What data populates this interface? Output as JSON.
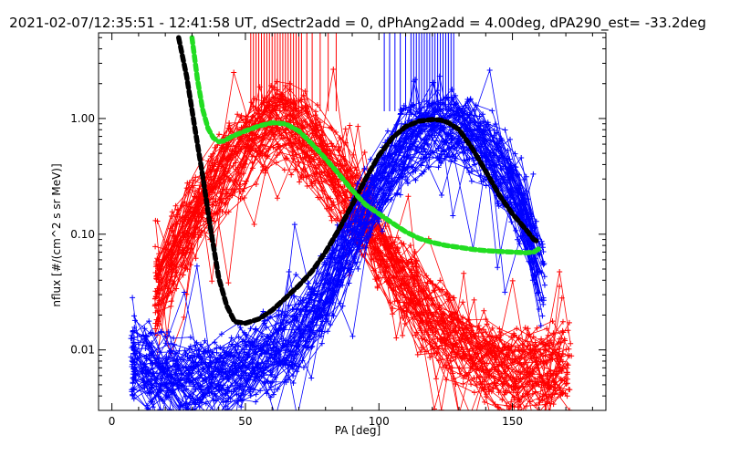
{
  "chart_data": {
    "type": "line",
    "title": "2021-02-07/12:35:51 - 12:41:58 UT, dSectr2add = 0, dPhAng2add = 4.00deg, dPA290_est= -33.2deg",
    "xlabel": "PA [deg]",
    "ylabel": "nflux [#/(cm^2 s sr MeV)]",
    "xlim": [
      -5,
      185
    ],
    "ylim": [
      0.003,
      5.5
    ],
    "yscale": "log",
    "x_ticks": [
      0,
      50,
      100,
      150
    ],
    "x_tick_labels": [
      "0",
      "50",
      "100",
      "150"
    ],
    "y_ticks": [
      0.01,
      0.1,
      1.0
    ],
    "y_tick_labels": [
      "0.01",
      "0.10",
      "1.00"
    ],
    "grid": false,
    "series": [
      {
        "color": "#000000",
        "style": "thick-dashed",
        "x": [
          25,
          28,
          31,
          34,
          37,
          40,
          43,
          46,
          50,
          55,
          60,
          65,
          70,
          75,
          80,
          85,
          90,
          95,
          100,
          105,
          110,
          115,
          120,
          123,
          126,
          130,
          135,
          140,
          145,
          150,
          155,
          158,
          160
        ],
        "y": [
          5.0,
          2.3,
          0.85,
          0.32,
          0.11,
          0.042,
          0.024,
          0.0175,
          0.017,
          0.0185,
          0.022,
          0.028,
          0.036,
          0.048,
          0.07,
          0.11,
          0.18,
          0.3,
          0.48,
          0.68,
          0.85,
          0.95,
          0.98,
          0.97,
          0.92,
          0.8,
          0.55,
          0.35,
          0.22,
          0.15,
          0.11,
          0.09,
          0.085
        ]
      },
      {
        "color": "#22dd22",
        "style": "thick-dashed",
        "x": [
          30,
          32,
          34,
          36,
          38,
          40,
          42,
          45,
          50,
          55,
          60,
          65,
          70,
          75,
          80,
          85,
          90,
          95,
          100,
          105,
          110,
          115,
          120,
          125,
          130,
          135,
          140,
          145,
          150,
          155,
          158,
          160
        ],
        "y": [
          5.0,
          2.2,
          1.2,
          0.82,
          0.68,
          0.63,
          0.64,
          0.7,
          0.78,
          0.86,
          0.92,
          0.9,
          0.78,
          0.6,
          0.45,
          0.33,
          0.24,
          0.18,
          0.15,
          0.125,
          0.105,
          0.092,
          0.085,
          0.08,
          0.077,
          0.074,
          0.072,
          0.071,
          0.07,
          0.069,
          0.07,
          0.075
        ]
      }
    ],
    "marker_bundles": [
      {
        "color": "#ff0000",
        "count": 60,
        "x": [
          17,
          25,
          35,
          45,
          55,
          62,
          70,
          80,
          90,
          100,
          110,
          120,
          130,
          140,
          150,
          160,
          172
        ],
        "y": [
          0.03,
          0.09,
          0.2,
          0.42,
          0.72,
          0.9,
          0.75,
          0.42,
          0.2,
          0.08,
          0.035,
          0.018,
          0.011,
          0.008,
          0.0065,
          0.0065,
          0.0075
        ]
      },
      {
        "color": "#0000ff",
        "count": 60,
        "x": [
          8,
          15,
          25,
          35,
          45,
          55,
          65,
          75,
          80,
          90,
          100,
          110,
          120,
          130,
          140,
          150,
          155,
          162
        ],
        "y": [
          0.008,
          0.007,
          0.0055,
          0.0055,
          0.0065,
          0.008,
          0.011,
          0.02,
          0.03,
          0.09,
          0.28,
          0.62,
          0.88,
          0.85,
          0.58,
          0.28,
          0.14,
          0.03
        ]
      }
    ],
    "red_ticks_x": [
      52,
      53,
      54,
      55,
      56,
      57,
      58,
      59,
      60,
      61,
      62,
      63,
      64,
      65,
      66,
      67,
      68,
      69,
      70,
      71,
      73,
      75,
      78,
      81,
      84
    ],
    "blue_ticks_x": [
      102,
      104,
      106,
      108,
      110,
      112,
      113,
      114,
      115,
      116,
      117,
      118,
      119,
      120,
      121,
      122,
      123,
      124,
      125,
      126,
      127,
      128
    ]
  }
}
